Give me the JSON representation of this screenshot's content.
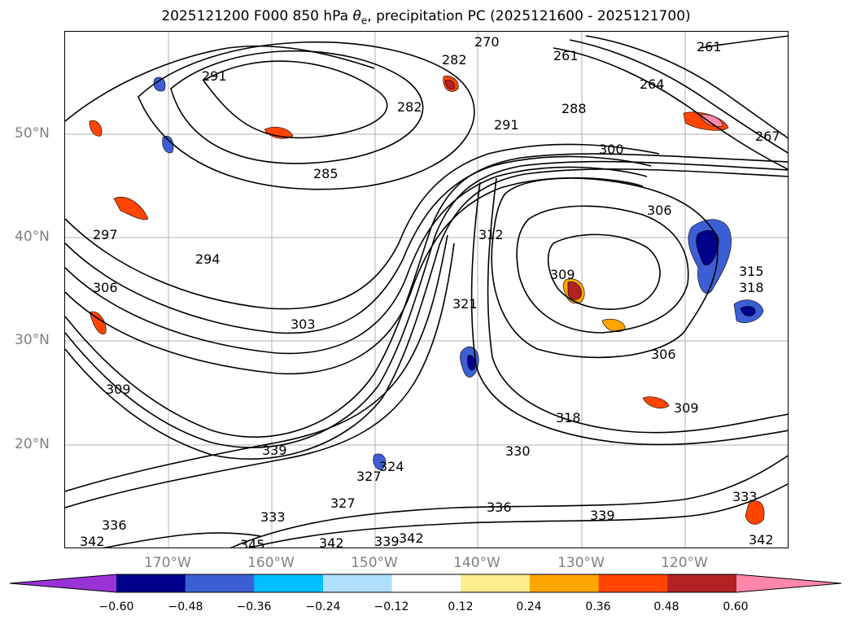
{
  "title_parts": {
    "prefix": "2025121200 F000 850 hPa ",
    "theta": "θ",
    "subscript": "e",
    "suffix": ", precipitation PC (2025121600 - 2025121700)"
  },
  "axes": {
    "lat_labels": [
      "50°N",
      "40°N",
      "30°N",
      "20°N"
    ],
    "lon_labels": [
      "170°W",
      "160°W",
      "150°W",
      "140°W",
      "130°W",
      "120°W"
    ]
  },
  "colorbar": {
    "ticks": [
      "−0.60",
      "−0.48",
      "−0.36",
      "−0.24",
      "−0.12",
      "0.12",
      "0.24",
      "0.36",
      "0.48",
      "0.60"
    ],
    "colors": [
      "#9a33d6",
      "#00008b",
      "#3c5fd6",
      "#00bfff",
      "#b0e0ff",
      "#ffffff",
      "#ffec8b",
      "#ffa500",
      "#ff4500",
      "#b22222",
      "#ff88aa"
    ]
  },
  "contour_labels": [
    "291",
    "282",
    "270",
    "261",
    "261",
    "282",
    "264",
    "267",
    "288",
    "291",
    "300",
    "285",
    "312",
    "306",
    "309",
    "297",
    "294",
    "306",
    "303",
    "309",
    "315",
    "318",
    "321",
    "306",
    "309",
    "318",
    "327",
    "324",
    "330",
    "333",
    "336",
    "339",
    "342",
    "342",
    "339",
    "342",
    "336",
    "333",
    "342",
    "345",
    "339",
    "327"
  ],
  "colors": {
    "frame": "#000000",
    "grid": "#b0b0b0",
    "tick_label": "#808080"
  }
}
